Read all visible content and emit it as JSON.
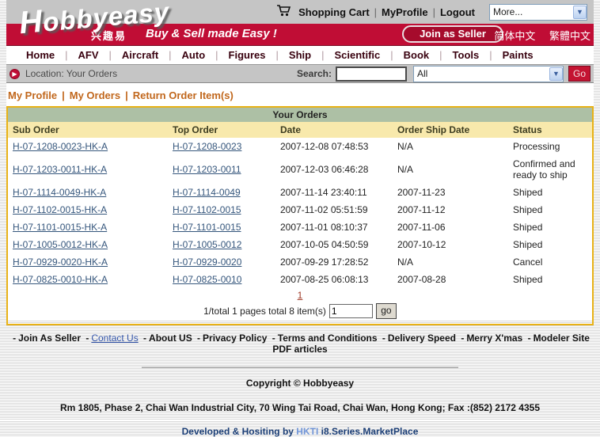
{
  "header": {
    "logo_text": "Hobbyeasy",
    "logo_cap": "H",
    "logo_rest": "obbyeasy",
    "logo_cn": "兴趣易",
    "tagline": "Buy & Sell made Easy !",
    "top_links": [
      "Shopping Cart",
      "MyProfile",
      "Logout"
    ],
    "more_dropdown": "More...",
    "join_seller_label": "Join as Seller",
    "lang_simplified": "简体中文",
    "lang_traditional": "繁體中文"
  },
  "nav": {
    "items": [
      "Home",
      "AFV",
      "Aircraft",
      "Auto",
      "Figures",
      "Ship",
      "Scientific",
      "Book",
      "Tools",
      "Paints"
    ]
  },
  "location_bar": {
    "label": "Location: Your Orders",
    "search_label": "Search:",
    "search_value": "",
    "category_selected": "All",
    "go_label": "Go"
  },
  "profile_nav": {
    "items": [
      "My Profile",
      "My Orders",
      "Return Order Item(s)"
    ]
  },
  "orders": {
    "title": "Your Orders",
    "columns": [
      "Sub Order",
      "Top Order",
      "Date",
      "Order Ship Date",
      "Status"
    ],
    "rows": [
      {
        "sub": "H-07-1208-0023-HK-A",
        "top": "H-07-1208-0023",
        "date": "2007-12-08 07:48:53",
        "ship": "N/A",
        "status": "Processing"
      },
      {
        "sub": "H-07-1203-0011-HK-A",
        "top": "H-07-1203-0011",
        "date": "2007-12-03 06:46:28",
        "ship": "N/A",
        "status": "Confirmed and ready to ship"
      },
      {
        "sub": "H-07-1114-0049-HK-A",
        "top": "H-07-1114-0049",
        "date": "2007-11-14 23:40:11",
        "ship": "2007-11-23",
        "status": "Shiped"
      },
      {
        "sub": "H-07-1102-0015-HK-A",
        "top": "H-07-1102-0015",
        "date": "2007-11-02 05:51:59",
        "ship": "2007-11-12",
        "status": "Shiped"
      },
      {
        "sub": "H-07-1101-0015-HK-A",
        "top": "H-07-1101-0015",
        "date": "2007-11-01 08:10:37",
        "ship": "2007-11-06",
        "status": "Shiped"
      },
      {
        "sub": "H-07-1005-0012-HK-A",
        "top": "H-07-1005-0012",
        "date": "2007-10-05 04:50:59",
        "ship": "2007-10-12",
        "status": "Shiped"
      },
      {
        "sub": "H-07-0929-0020-HK-A",
        "top": "H-07-0929-0020",
        "date": "2007-09-29 17:28:52",
        "ship": "N/A",
        "status": "Cancel"
      },
      {
        "sub": "H-07-0825-0010-HK-A",
        "top": "H-07-0825-0010",
        "date": "2007-08-25 06:08:13",
        "ship": "2007-08-28",
        "status": "Shiped"
      }
    ],
    "pagination": {
      "page_link": "1",
      "summary": "1/total 1 pages total 8 item(s)",
      "input_value": "1",
      "go_label": "go"
    }
  },
  "footer": {
    "links": [
      "Join As Seller",
      "Contact Us",
      "About US",
      "Privacy Policy",
      "Terms and Conditions",
      "Delivery Speed",
      "Merry X'mas",
      "Modeler Site PDF articles"
    ],
    "blue_link": "Contact Us",
    "copyright": "Copyright © Hobbyeasy",
    "address": "Rm 1805, Phase 2, Chai Wan Industrial City, 70 Wing Tai Road, Chai Wan, Hong Kong; Fax :(852) 2172 4355",
    "developed_prefix": "Developed & Hositing by ",
    "developed_link": "HKTI",
    "developed_suffix": " i8.Series.MarketPlace"
  },
  "colors": {
    "brand_red": "#c00d35",
    "table_border_gold": "#e8b217",
    "table_title_green": "#adc0a5",
    "table_head_yellow": "#f8e9ac",
    "order_link_blue": "#35567c",
    "accent_orange": "#c1671c"
  }
}
